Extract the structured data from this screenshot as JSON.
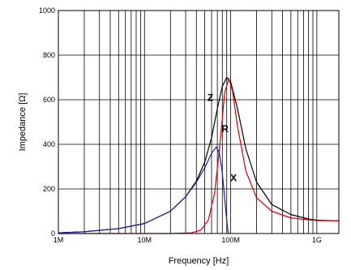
{
  "chart_data": {
    "type": "line",
    "xlabel": "Frequency [Hz]",
    "ylabel": "Impedance [Ω]",
    "x_scale": "log",
    "xlim": [
      1000000,
      1800000000
    ],
    "ylim": [
      0,
      1000
    ],
    "grid": true,
    "x_ticks": [
      {
        "value": 1000000,
        "label": "1M"
      },
      {
        "value": 10000000,
        "label": "10M"
      },
      {
        "value": 100000000,
        "label": "100M"
      },
      {
        "value": 1000000000,
        "label": "1G"
      }
    ],
    "y_ticks": [
      0,
      200,
      400,
      600,
      800,
      1000
    ],
    "series": [
      {
        "name": "Z",
        "color": "#000000",
        "points": [
          [
            1000000,
            3
          ],
          [
            2000000,
            8
          ],
          [
            5000000,
            22
          ],
          [
            10000000,
            45
          ],
          [
            20000000,
            100
          ],
          [
            30000000,
            165
          ],
          [
            40000000,
            235
          ],
          [
            50000000,
            320
          ],
          [
            60000000,
            430
          ],
          [
            70000000,
            560
          ],
          [
            80000000,
            660
          ],
          [
            90000000,
            700
          ],
          [
            100000000,
            680
          ],
          [
            120000000,
            560
          ],
          [
            150000000,
            380
          ],
          [
            200000000,
            230
          ],
          [
            300000000,
            130
          ],
          [
            500000000,
            85
          ],
          [
            800000000,
            65
          ],
          [
            1000000000,
            60
          ],
          [
            1800000000,
            57
          ]
        ]
      },
      {
        "name": "R",
        "color": "#dd0000",
        "points": [
          [
            1000000,
            0
          ],
          [
            20000000,
            0
          ],
          [
            35000000,
            3
          ],
          [
            45000000,
            15
          ],
          [
            55000000,
            60
          ],
          [
            65000000,
            180
          ],
          [
            75000000,
            400
          ],
          [
            85000000,
            630
          ],
          [
            95000000,
            695
          ],
          [
            105000000,
            640
          ],
          [
            120000000,
            480
          ],
          [
            150000000,
            280
          ],
          [
            200000000,
            160
          ],
          [
            300000000,
            100
          ],
          [
            500000000,
            70
          ],
          [
            1000000000,
            58
          ],
          [
            1800000000,
            57
          ]
        ]
      },
      {
        "name": "X",
        "color": "#1a1aa0",
        "points": [
          [
            1000000,
            3
          ],
          [
            2000000,
            8
          ],
          [
            5000000,
            22
          ],
          [
            10000000,
            45
          ],
          [
            20000000,
            100
          ],
          [
            30000000,
            165
          ],
          [
            40000000,
            230
          ],
          [
            50000000,
            295
          ],
          [
            60000000,
            360
          ],
          [
            68000000,
            388
          ],
          [
            74000000,
            360
          ],
          [
            80000000,
            270
          ],
          [
            85000000,
            160
          ],
          [
            90000000,
            60
          ],
          [
            93000000,
            10
          ],
          [
            95000000,
            0
          ]
        ]
      }
    ],
    "annotations": [
      {
        "text": "Z",
        "x": 58000000,
        "y": 595
      },
      {
        "text": "R",
        "x": 86000000,
        "y": 455
      },
      {
        "text": "X",
        "x": 108000000,
        "y": 235
      }
    ]
  }
}
